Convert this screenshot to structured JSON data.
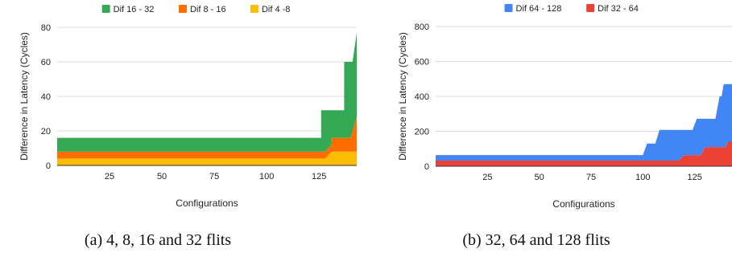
{
  "captions": [
    "(a) 4, 8, 16 and 32 flits",
    "(b) 32, 64 and 128 flits"
  ],
  "chart_data": [
    {
      "type": "area",
      "stacked": true,
      "xlabel": "Configurations",
      "ylabel": "Difference in Latency (Cycles)",
      "xlim": [
        0,
        143
      ],
      "ylim": [
        0,
        80
      ],
      "xticks": [
        25,
        50,
        75,
        100,
        125
      ],
      "yticks": [
        0,
        20,
        40,
        60,
        80
      ],
      "grid": "horizontal",
      "legend": "top",
      "series": [
        {
          "name": "Dif 16 - 32",
          "color": "#34a853",
          "points": [
            [
              0,
              8
            ],
            [
              126,
              8
            ],
            [
              126,
              16
            ],
            [
              131,
              16
            ],
            [
              131,
              16
            ],
            [
              137,
              16
            ],
            [
              137,
              16
            ],
            [
              140,
              16
            ],
            [
              140,
              16
            ],
            [
              143,
              16
            ]
          ]
        },
        {
          "name": "Dif 8 - 16",
          "color": "#ff6d01",
          "points": [
            [
              0,
              4
            ],
            [
              128,
              4
            ],
            [
              131,
              4
            ],
            [
              131,
              8
            ],
            [
              140,
              8
            ],
            [
              140,
              8
            ],
            [
              143,
              20
            ]
          ]
        },
        {
          "name": "Dif 4 -8",
          "color": "#fbbc04",
          "points": [
            [
              0,
              4
            ],
            [
              128,
              4
            ],
            [
              131,
              8
            ],
            [
              140,
              8
            ],
            [
              140,
              8
            ],
            [
              143,
              8
            ]
          ]
        }
      ],
      "totals": [
        [
          0,
          16
        ],
        [
          126,
          16
        ],
        [
          126,
          32
        ],
        [
          137,
          32
        ],
        [
          137,
          60
        ],
        [
          141,
          60
        ],
        [
          143,
          77
        ]
      ]
    },
    {
      "type": "area",
      "stacked": true,
      "xlabel": "Configurations",
      "ylabel": "Difference in Latency (Cycles)",
      "xlim": [
        0,
        143
      ],
      "ylim": [
        0,
        800
      ],
      "xticks": [
        25,
        50,
        75,
        100,
        125
      ],
      "yticks": [
        0,
        200,
        400,
        600,
        800
      ],
      "grid": "horizontal",
      "legend": "top",
      "series": [
        {
          "name": "Dif 64 - 128",
          "color": "#4285f4",
          "points": [
            [
              0,
              32
            ],
            [
              143,
              32
            ]
          ]
        },
        {
          "name": "Dif 32 - 64",
          "color": "#ea4335",
          "points": [
            [
              0,
              32
            ],
            [
              117,
              32
            ],
            [
              120,
              64
            ],
            [
              128,
              64
            ],
            [
              130,
              110
            ],
            [
              140,
              110
            ],
            [
              141,
              140
            ],
            [
              143,
              140
            ]
          ]
        }
      ],
      "totals": [
        [
          0,
          64
        ],
        [
          100,
          64
        ],
        [
          102,
          130
        ],
        [
          106,
          130
        ],
        [
          108,
          208
        ],
        [
          124,
          208
        ],
        [
          126,
          272
        ],
        [
          135,
          272
        ],
        [
          137,
          400
        ],
        [
          138,
          400
        ],
        [
          139,
          470
        ],
        [
          143,
          470
        ]
      ]
    }
  ]
}
